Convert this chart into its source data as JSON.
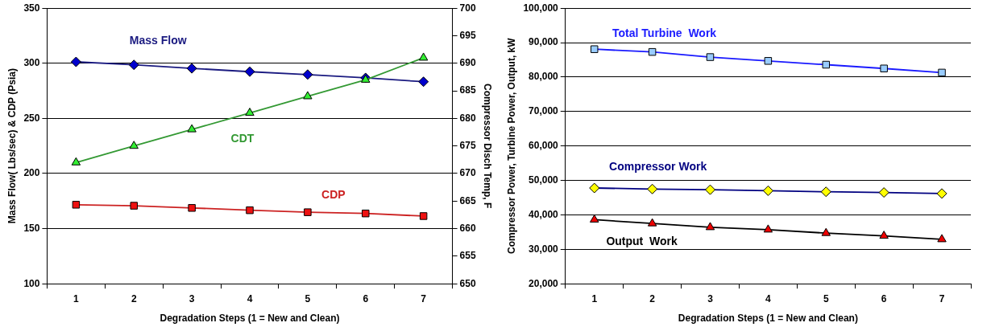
{
  "chart_data": [
    {
      "type": "line",
      "xlabel": "Degradation Steps (1 = New and Clean)",
      "ylabel": "Mass Flow( Lbs/sec) & CDP (Psia)",
      "y2label": "Compressor Disch Temp, F",
      "categories": [
        "1",
        "2",
        "3",
        "4",
        "5",
        "6",
        "7"
      ],
      "series": [
        {
          "name": "Mass Flow",
          "color": "#1a1a80",
          "colors": [
            "#0000cc",
            "#0000cc",
            "#0000cc",
            "#0000cc",
            "#0000cc",
            "#0000cc",
            "#0000cc"
          ],
          "marker": "diamond",
          "values": [
            301.3,
            298.6,
            295.4,
            292.4,
            289.8,
            286.8,
            283.3
          ]
        },
        {
          "name": "CDT",
          "axis": "y2",
          "color": "#339933",
          "colors": [
            "#33ee33",
            "#33ee33",
            "#33ee33",
            "#33ee33",
            "#33ee33",
            "#33ee33",
            "#33ee33"
          ],
          "marker": "triangle",
          "values": [
            672,
            675,
            678,
            681,
            684,
            687,
            691
          ]
        },
        {
          "name": "CDP",
          "color": "#cc2222",
          "colors": [
            "#ee1111",
            "#ee1111",
            "#ee1111",
            "#ee1111",
            "#ee1111",
            "#ee1111",
            "#ee1111"
          ],
          "marker": "square",
          "values": [
            171.7,
            170.8,
            168.8,
            166.7,
            164.9,
            163.8,
            161.4
          ]
        }
      ],
      "ylim": [
        100,
        350
      ],
      "yticks": [
        100,
        150,
        200,
        250,
        300,
        350
      ],
      "y2lim": [
        650,
        700
      ],
      "y2ticks": [
        650,
        655,
        660,
        665,
        670,
        675,
        680,
        685,
        690,
        695,
        700
      ],
      "grid": "y",
      "legend": false
    },
    {
      "type": "line",
      "xlabel": "Degradation Steps (1 = New and Clean)",
      "ylabel": "Compressor Power, Turbine Power, Output, kW",
      "categories": [
        "1",
        "2",
        "3",
        "4",
        "5",
        "6",
        "7"
      ],
      "series": [
        {
          "name": "Total Turbine  Work",
          "color": "#1a1aff",
          "colors": [
            "#99ccff",
            "#99ccff",
            "#99ccff",
            "#99ccff",
            "#99ccff",
            "#99ccff",
            "#99ccff"
          ],
          "marker": "square",
          "values": [
            88100,
            87300,
            85800,
            84700,
            83600,
            82500,
            81300
          ]
        },
        {
          "name": "Compressor Work",
          "color": "#000080",
          "colors": [
            "#ffff00",
            "#ffff00",
            "#ffff00",
            "#ffff00",
            "#ffff00",
            "#ffff00",
            "#ffff00"
          ],
          "marker": "diamond",
          "values": [
            47800,
            47500,
            47300,
            47000,
            46700,
            46500,
            46200
          ]
        },
        {
          "name": "Output  Work",
          "color": "#000000",
          "colors": [
            "#ee0000",
            "#ee0000",
            "#ee0000",
            "#ee0000",
            "#ee0000",
            "#ee0000",
            "#ee0000"
          ],
          "marker": "triangle",
          "values": [
            38600,
            37500,
            36400,
            35700,
            34700,
            33900,
            32900
          ]
        }
      ],
      "ylim": [
        20000,
        100000
      ],
      "yticks": [
        {
          "value": 20000,
          "label": "20,000"
        },
        {
          "value": 30000,
          "label": "30,000"
        },
        {
          "value": 40000,
          "label": "40,000"
        },
        {
          "value": 50000,
          "label": "50,000"
        },
        {
          "value": 60000,
          "label": "60,000"
        },
        {
          "value": 70000,
          "label": "70,000"
        },
        {
          "value": 80000,
          "label": "80,000"
        },
        {
          "value": 90000,
          "label": "90,000"
        },
        {
          "value": 100000,
          "label": "100,000"
        }
      ],
      "grid": "y",
      "legend": false
    }
  ]
}
